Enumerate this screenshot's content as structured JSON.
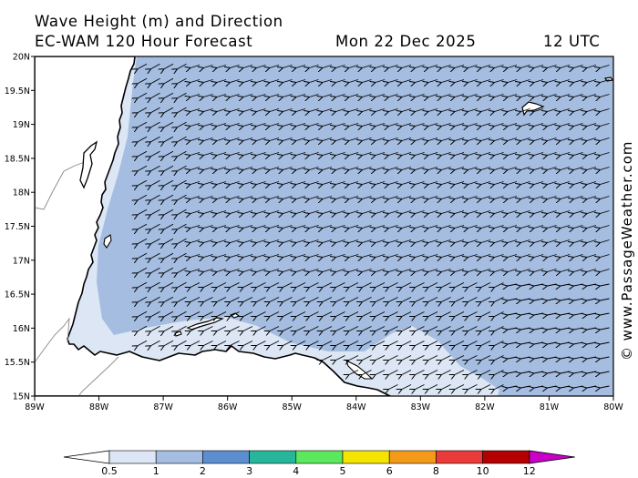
{
  "header": {
    "title": "Wave Height (m) and Direction",
    "model": "EC-WAM 120 Hour Forecast",
    "date": "Mon 22 Dec 2025",
    "time": "12 UTC"
  },
  "credit": "© www.PassageWeather.com",
  "map": {
    "lon_range": [
      -89,
      -80
    ],
    "lat_range": [
      15,
      20
    ],
    "lon_ticks": [
      "89W",
      "88W",
      "87W",
      "86W",
      "85W",
      "84W",
      "83W",
      "82W",
      "81W",
      "80W"
    ],
    "lat_ticks": [
      "20N",
      "19.5N",
      "19N",
      "18.5N",
      "18N",
      "17.5N",
      "17N",
      "16.5N",
      "16N",
      "15.5N",
      "15N"
    ],
    "sea_color": "#a4bde0",
    "light_band_color": "#dce6f4",
    "land_color": "#ffffff",
    "dominant_wave_band_m": "1-2",
    "nearshore_wave_band_m": "0.5-1",
    "arrow_direction": "toward west-southwest"
  },
  "colorbar": {
    "ticks": [
      "0.5",
      "1",
      "2",
      "3",
      "4",
      "5",
      "6",
      "8",
      "10",
      "12"
    ],
    "colors": [
      "#dce6f4",
      "#a4bde0",
      "#5d8fd0",
      "#27b69a",
      "#5ce85c",
      "#f4e400",
      "#f39a18",
      "#ea3a3a",
      "#b40000",
      "#c800c8"
    ]
  }
}
